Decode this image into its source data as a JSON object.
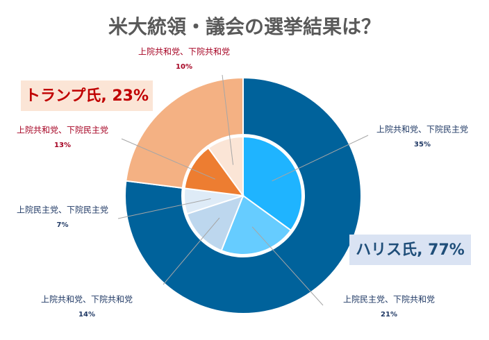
{
  "chart_data": {
    "type": "pie",
    "title": "米大統領・議会の選挙結果は？",
    "outer": {
      "values": [
        77,
        23
      ],
      "value_labels": [
        "ハリス氏, 77%",
        "トランプ氏, 23%"
      ],
      "colors": [
        "#00629b",
        "#f4b183"
      ],
      "label_colors": [
        "#1f4e79",
        "#c00000"
      ],
      "label_backgrounds": [
        "#dae3f3",
        "#fbe5d6"
      ]
    },
    "inner": {
      "categories": [
        "上院共和党、下院民主党",
        "上院民主党、下院共和党",
        "上院共和党、下院共和党",
        "上院民主党、下院民主党",
        "上院共和党、下院民主党",
        "上院共和党、下院共和党"
      ],
      "values": [
        35,
        21,
        14,
        7,
        13,
        10
      ],
      "value_labels": [
        "35%",
        "21%",
        "14%",
        "7%",
        "13%",
        "10%"
      ],
      "colors": [
        "#1fb4ff",
        "#66ccff",
        "#bdd7ee",
        "#deebf7",
        "#ed7d31",
        "#fbe5d6"
      ],
      "label_colors": [
        "#1f3864",
        "#1f3864",
        "#1f3864",
        "#1f3864",
        "#a50021",
        "#a50021"
      ]
    }
  }
}
